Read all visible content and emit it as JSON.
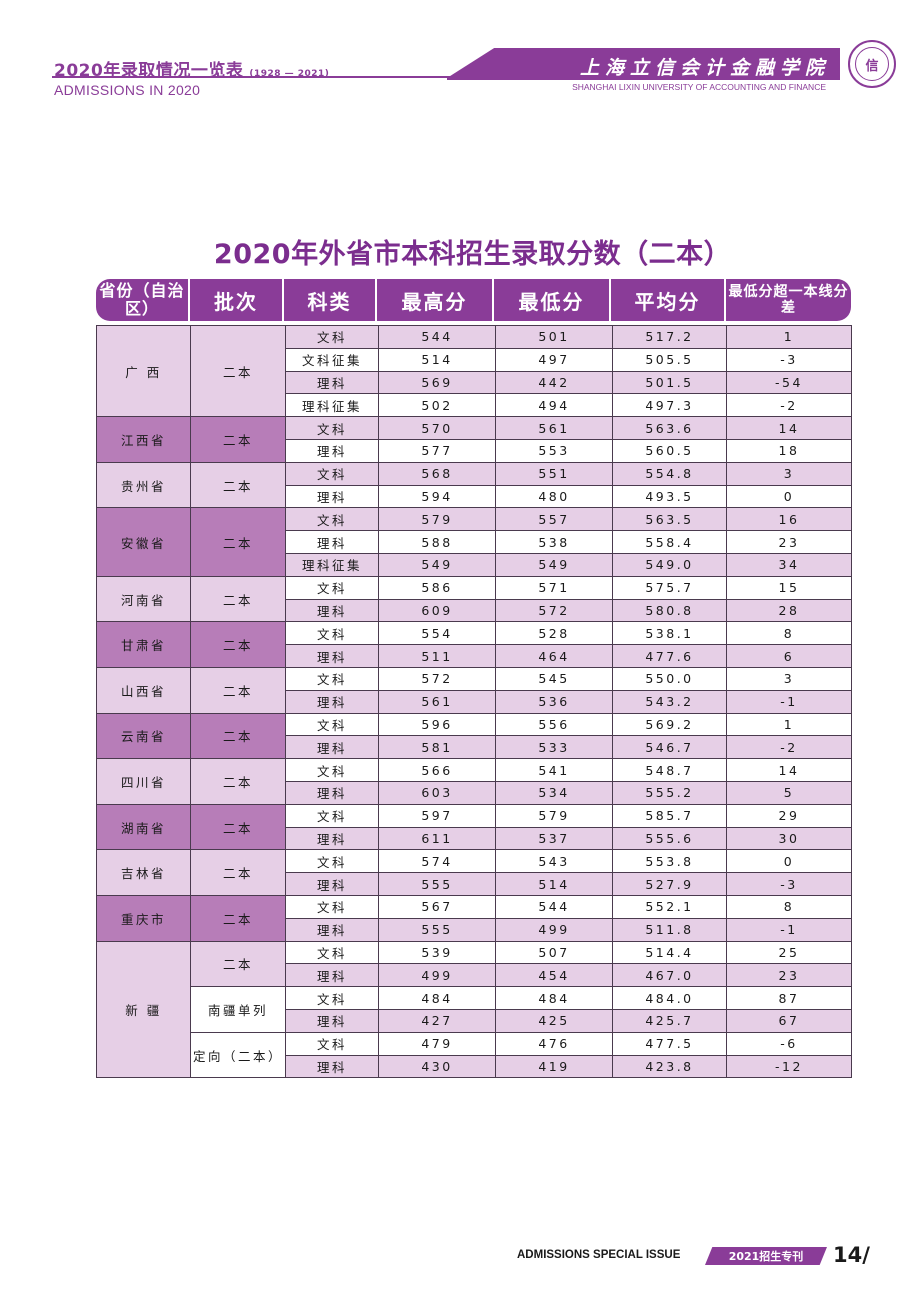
{
  "header": {
    "title_cn": "2020年录取情况一览表",
    "years": "(1928 — 2021)",
    "title_en": "ADMISSIONS IN 2020",
    "school_cn": "上海立信会计金融学院",
    "school_en": "SHANGHAI LIXIN UNIVERSITY OF ACCOUNTING AND FINANCE",
    "seal_text": "信"
  },
  "main_title": "2020年外省市本科招生录取分数（二本）",
  "table": {
    "columns": [
      "省份（自治区）",
      "批次",
      "科类",
      "最高分",
      "最低分",
      "平均分",
      "最低分超一本线分差"
    ],
    "rows": [
      {
        "province": "广 西",
        "batch": "二本",
        "subject": "文科",
        "max": "544",
        "min": "501",
        "avg": "517.2",
        "diff": "1"
      },
      {
        "province": "广 西",
        "batch": "二本",
        "subject": "文科征集",
        "max": "514",
        "min": "497",
        "avg": "505.5",
        "diff": "-3"
      },
      {
        "province": "广 西",
        "batch": "二本",
        "subject": "理科",
        "max": "569",
        "min": "442",
        "avg": "501.5",
        "diff": "-54"
      },
      {
        "province": "广 西",
        "batch": "二本",
        "subject": "理科征集",
        "max": "502",
        "min": "494",
        "avg": "497.3",
        "diff": "-2"
      },
      {
        "province": "江西省",
        "batch": "二本",
        "subject": "文科",
        "max": "570",
        "min": "561",
        "avg": "563.6",
        "diff": "14"
      },
      {
        "province": "江西省",
        "batch": "二本",
        "subject": "理科",
        "max": "577",
        "min": "553",
        "avg": "560.5",
        "diff": "18"
      },
      {
        "province": "贵州省",
        "batch": "二本",
        "subject": "文科",
        "max": "568",
        "min": "551",
        "avg": "554.8",
        "diff": "3"
      },
      {
        "province": "贵州省",
        "batch": "二本",
        "subject": "理科",
        "max": "594",
        "min": "480",
        "avg": "493.5",
        "diff": "0"
      },
      {
        "province": "安徽省",
        "batch": "二本",
        "subject": "文科",
        "max": "579",
        "min": "557",
        "avg": "563.5",
        "diff": "16"
      },
      {
        "province": "安徽省",
        "batch": "二本",
        "subject": "理科",
        "max": "588",
        "min": "538",
        "avg": "558.4",
        "diff": "23"
      },
      {
        "province": "安徽省",
        "batch": "二本",
        "subject": "理科征集",
        "max": "549",
        "min": "549",
        "avg": "549.0",
        "diff": "34"
      },
      {
        "province": "河南省",
        "batch": "二本",
        "subject": "文科",
        "max": "586",
        "min": "571",
        "avg": "575.7",
        "diff": "15"
      },
      {
        "province": "河南省",
        "batch": "二本",
        "subject": "理科",
        "max": "609",
        "min": "572",
        "avg": "580.8",
        "diff": "28"
      },
      {
        "province": "甘肃省",
        "batch": "二本",
        "subject": "文科",
        "max": "554",
        "min": "528",
        "avg": "538.1",
        "diff": "8"
      },
      {
        "province": "甘肃省",
        "batch": "二本",
        "subject": "理科",
        "max": "511",
        "min": "464",
        "avg": "477.6",
        "diff": "6"
      },
      {
        "province": "山西省",
        "batch": "二本",
        "subject": "文科",
        "max": "572",
        "min": "545",
        "avg": "550.0",
        "diff": "3"
      },
      {
        "province": "山西省",
        "batch": "二本",
        "subject": "理科",
        "max": "561",
        "min": "536",
        "avg": "543.2",
        "diff": "-1"
      },
      {
        "province": "云南省",
        "batch": "二本",
        "subject": "文科",
        "max": "596",
        "min": "556",
        "avg": "569.2",
        "diff": "1"
      },
      {
        "province": "云南省",
        "batch": "二本",
        "subject": "理科",
        "max": "581",
        "min": "533",
        "avg": "546.7",
        "diff": "-2"
      },
      {
        "province": "四川省",
        "batch": "二本",
        "subject": "文科",
        "max": "566",
        "min": "541",
        "avg": "548.7",
        "diff": "14"
      },
      {
        "province": "四川省",
        "batch": "二本",
        "subject": "理科",
        "max": "603",
        "min": "534",
        "avg": "555.2",
        "diff": "5"
      },
      {
        "province": "湖南省",
        "batch": "二本",
        "subject": "文科",
        "max": "597",
        "min": "579",
        "avg": "585.7",
        "diff": "29"
      },
      {
        "province": "湖南省",
        "batch": "二本",
        "subject": "理科",
        "max": "611",
        "min": "537",
        "avg": "555.6",
        "diff": "30"
      },
      {
        "province": "吉林省",
        "batch": "二本",
        "subject": "文科",
        "max": "574",
        "min": "543",
        "avg": "553.8",
        "diff": "0"
      },
      {
        "province": "吉林省",
        "batch": "二本",
        "subject": "理科",
        "max": "555",
        "min": "514",
        "avg": "527.9",
        "diff": "-3"
      },
      {
        "province": "重庆市",
        "batch": "二本",
        "subject": "文科",
        "max": "567",
        "min": "544",
        "avg": "552.1",
        "diff": "8"
      },
      {
        "province": "重庆市",
        "batch": "二本",
        "subject": "理科",
        "max": "555",
        "min": "499",
        "avg": "511.8",
        "diff": "-1"
      },
      {
        "province": "新 疆",
        "batch": "二本",
        "subject": "文科",
        "max": "539",
        "min": "507",
        "avg": "514.4",
        "diff": "25"
      },
      {
        "province": "新 疆",
        "batch": "二本",
        "subject": "理科",
        "max": "499",
        "min": "454",
        "avg": "467.0",
        "diff": "23"
      },
      {
        "province": "新 疆",
        "batch": "南疆单列",
        "subject": "文科",
        "max": "484",
        "min": "484",
        "avg": "484.0",
        "diff": "87"
      },
      {
        "province": "新 疆",
        "batch": "南疆单列",
        "subject": "理科",
        "max": "427",
        "min": "425",
        "avg": "425.7",
        "diff": "67"
      },
      {
        "province": "新 疆",
        "batch": "定向（二本）",
        "subject": "文科",
        "max": "479",
        "min": "476",
        "avg": "477.5",
        "diff": "-6"
      },
      {
        "province": "新 疆",
        "batch": "定向（二本）",
        "subject": "理科",
        "max": "430",
        "min": "419",
        "avg": "423.8",
        "diff": "-12"
      }
    ]
  },
  "footer": {
    "issue_en": "ADMISSIONS SPECIAL ISSUE",
    "issue_cn": "2021招生专刊",
    "page": "14/"
  },
  "colors": {
    "brand_purple": "#8a3c98",
    "row_light": "#e6cfe6",
    "province_dark": "#b77db8"
  }
}
